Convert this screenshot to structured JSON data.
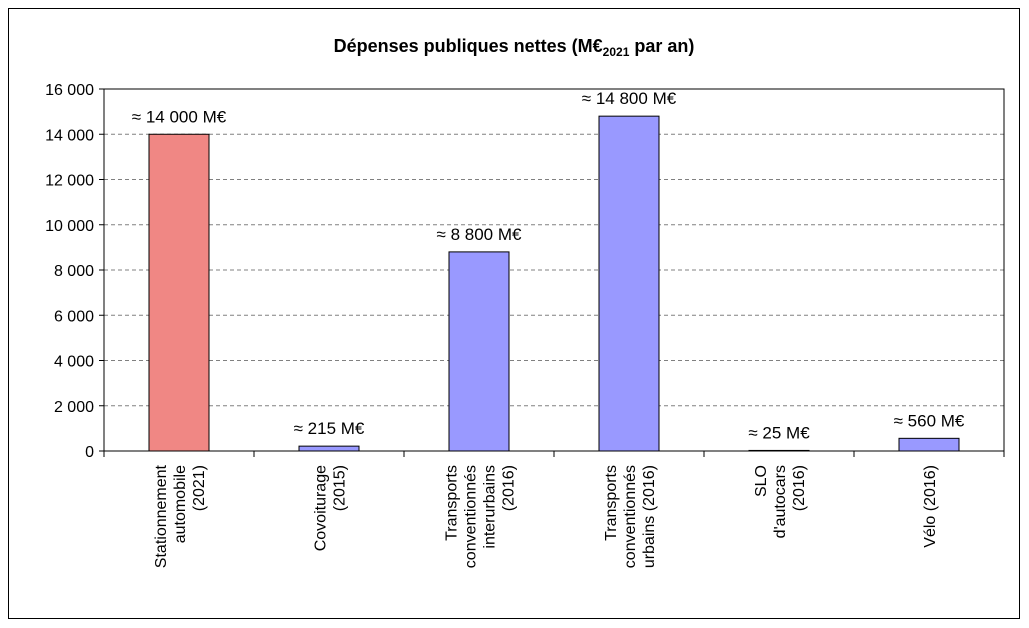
{
  "chart_data": {
    "type": "bar",
    "title": "Dépenses publiques nettes (M€",
    "title_subscript": "2021",
    "title_suffix": " par an)",
    "xlabel": "",
    "ylabel": "",
    "ylim": [
      0,
      16000
    ],
    "yticks": [
      0,
      2000,
      4000,
      6000,
      8000,
      10000,
      12000,
      14000,
      16000
    ],
    "ytick_labels": [
      "0",
      "2 000",
      "4 000",
      "6 000",
      "8 000",
      "10 000",
      "12 000",
      "14 000",
      "16 000"
    ],
    "grid": "horizontal-dashed",
    "categories": [
      [
        "Stationnement",
        "automobile",
        "(2021)"
      ],
      [
        "Covoiturage",
        "(2015)"
      ],
      [
        "Transports",
        "conventionnés",
        "interurbains",
        "(2016)"
      ],
      [
        "Transports",
        "conventionnés",
        "urbains (2016)"
      ],
      [
        "SLO",
        "d'autocars",
        "(2016)"
      ],
      [
        "Vélo (2016)"
      ]
    ],
    "values": [
      14000,
      215,
      8800,
      14800,
      25,
      560
    ],
    "data_labels": [
      "≈ 14 000 M€",
      "≈ 215 M€",
      "≈ 8 800 M€",
      "≈ 14 800 M€",
      "≈ 25 M€",
      "≈ 560 M€"
    ],
    "colors": [
      "#F08784",
      "#9999FF",
      "#9999FF",
      "#9999FF",
      "#9999FF",
      "#9999FF"
    ],
    "edge_color": "#000000",
    "grid_color": "#808080"
  }
}
